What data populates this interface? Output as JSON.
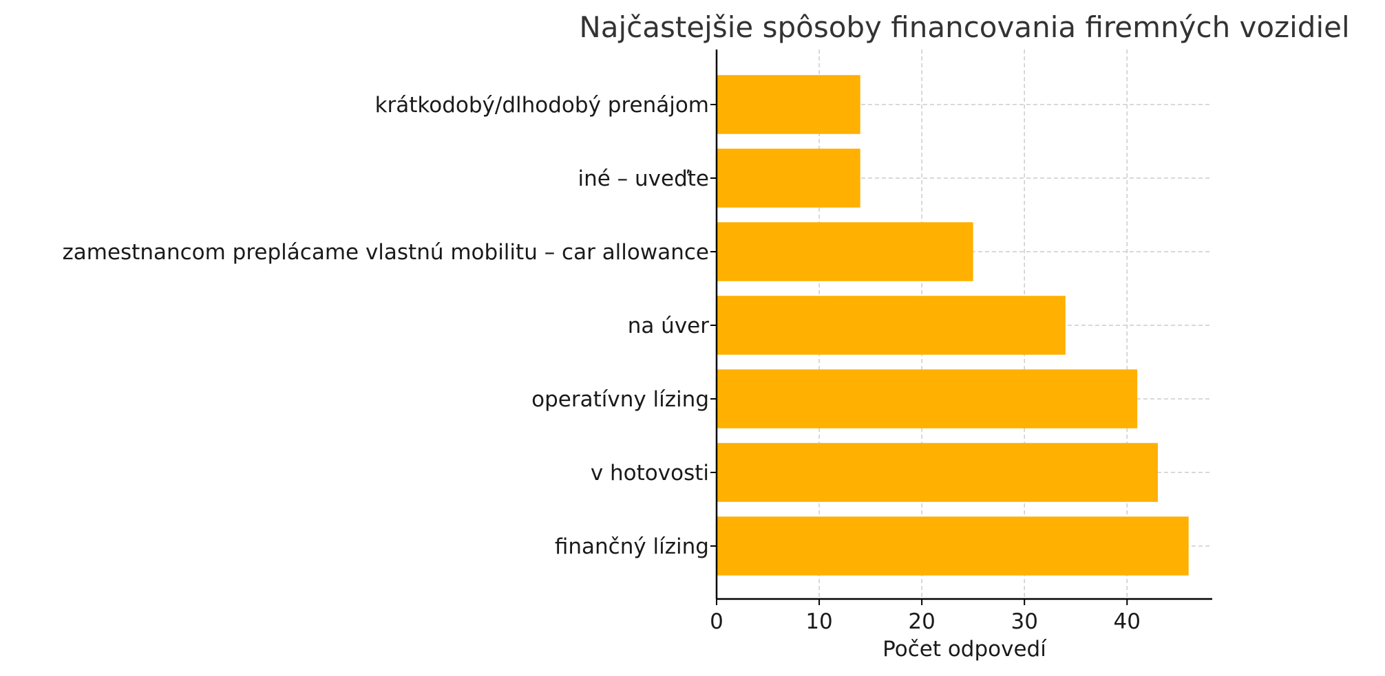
{
  "chart_data": {
    "type": "bar",
    "orientation": "horizontal",
    "title": "Najčastejšie spôsoby financovania firemných vozidiel",
    "xlabel": "Počet odpovedí",
    "ylabel": "",
    "categories": [
      "finančný lízing",
      "v hotovosti",
      "operatívny lízing",
      "na úver",
      "zamestnancom preplácame vlastnú mobilitu – car allowance",
      "iné – uveďte",
      "krátkodobý/dlhodobý prenájom"
    ],
    "values": [
      46,
      43,
      41,
      34,
      25,
      14,
      14
    ],
    "xlim": [
      0,
      48.3
    ],
    "xticks": [
      0,
      10,
      20,
      30,
      40
    ],
    "grid": true,
    "bar_color": "#FFB000"
  }
}
